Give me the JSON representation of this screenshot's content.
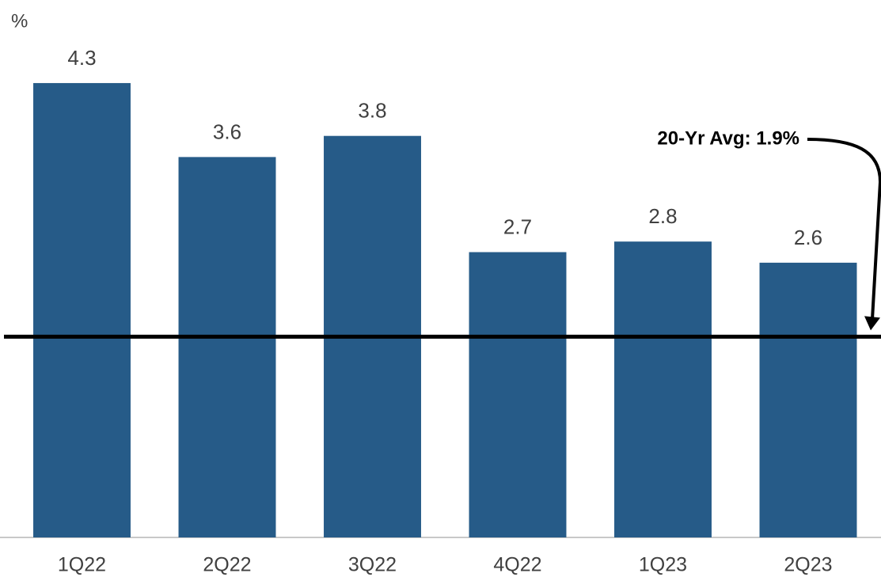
{
  "chart_data": {
    "type": "bar",
    "y_label": "%",
    "categories": [
      "1Q22",
      "2Q22",
      "3Q22",
      "4Q22",
      "1Q23",
      "2Q23"
    ],
    "values": [
      4.3,
      3.6,
      3.8,
      2.7,
      2.8,
      2.6
    ],
    "color": "#265b88",
    "ylim": [
      0,
      5
    ],
    "reference_line": {
      "value": 1.9,
      "label": "20-Yr Avg: 1.9%"
    }
  }
}
